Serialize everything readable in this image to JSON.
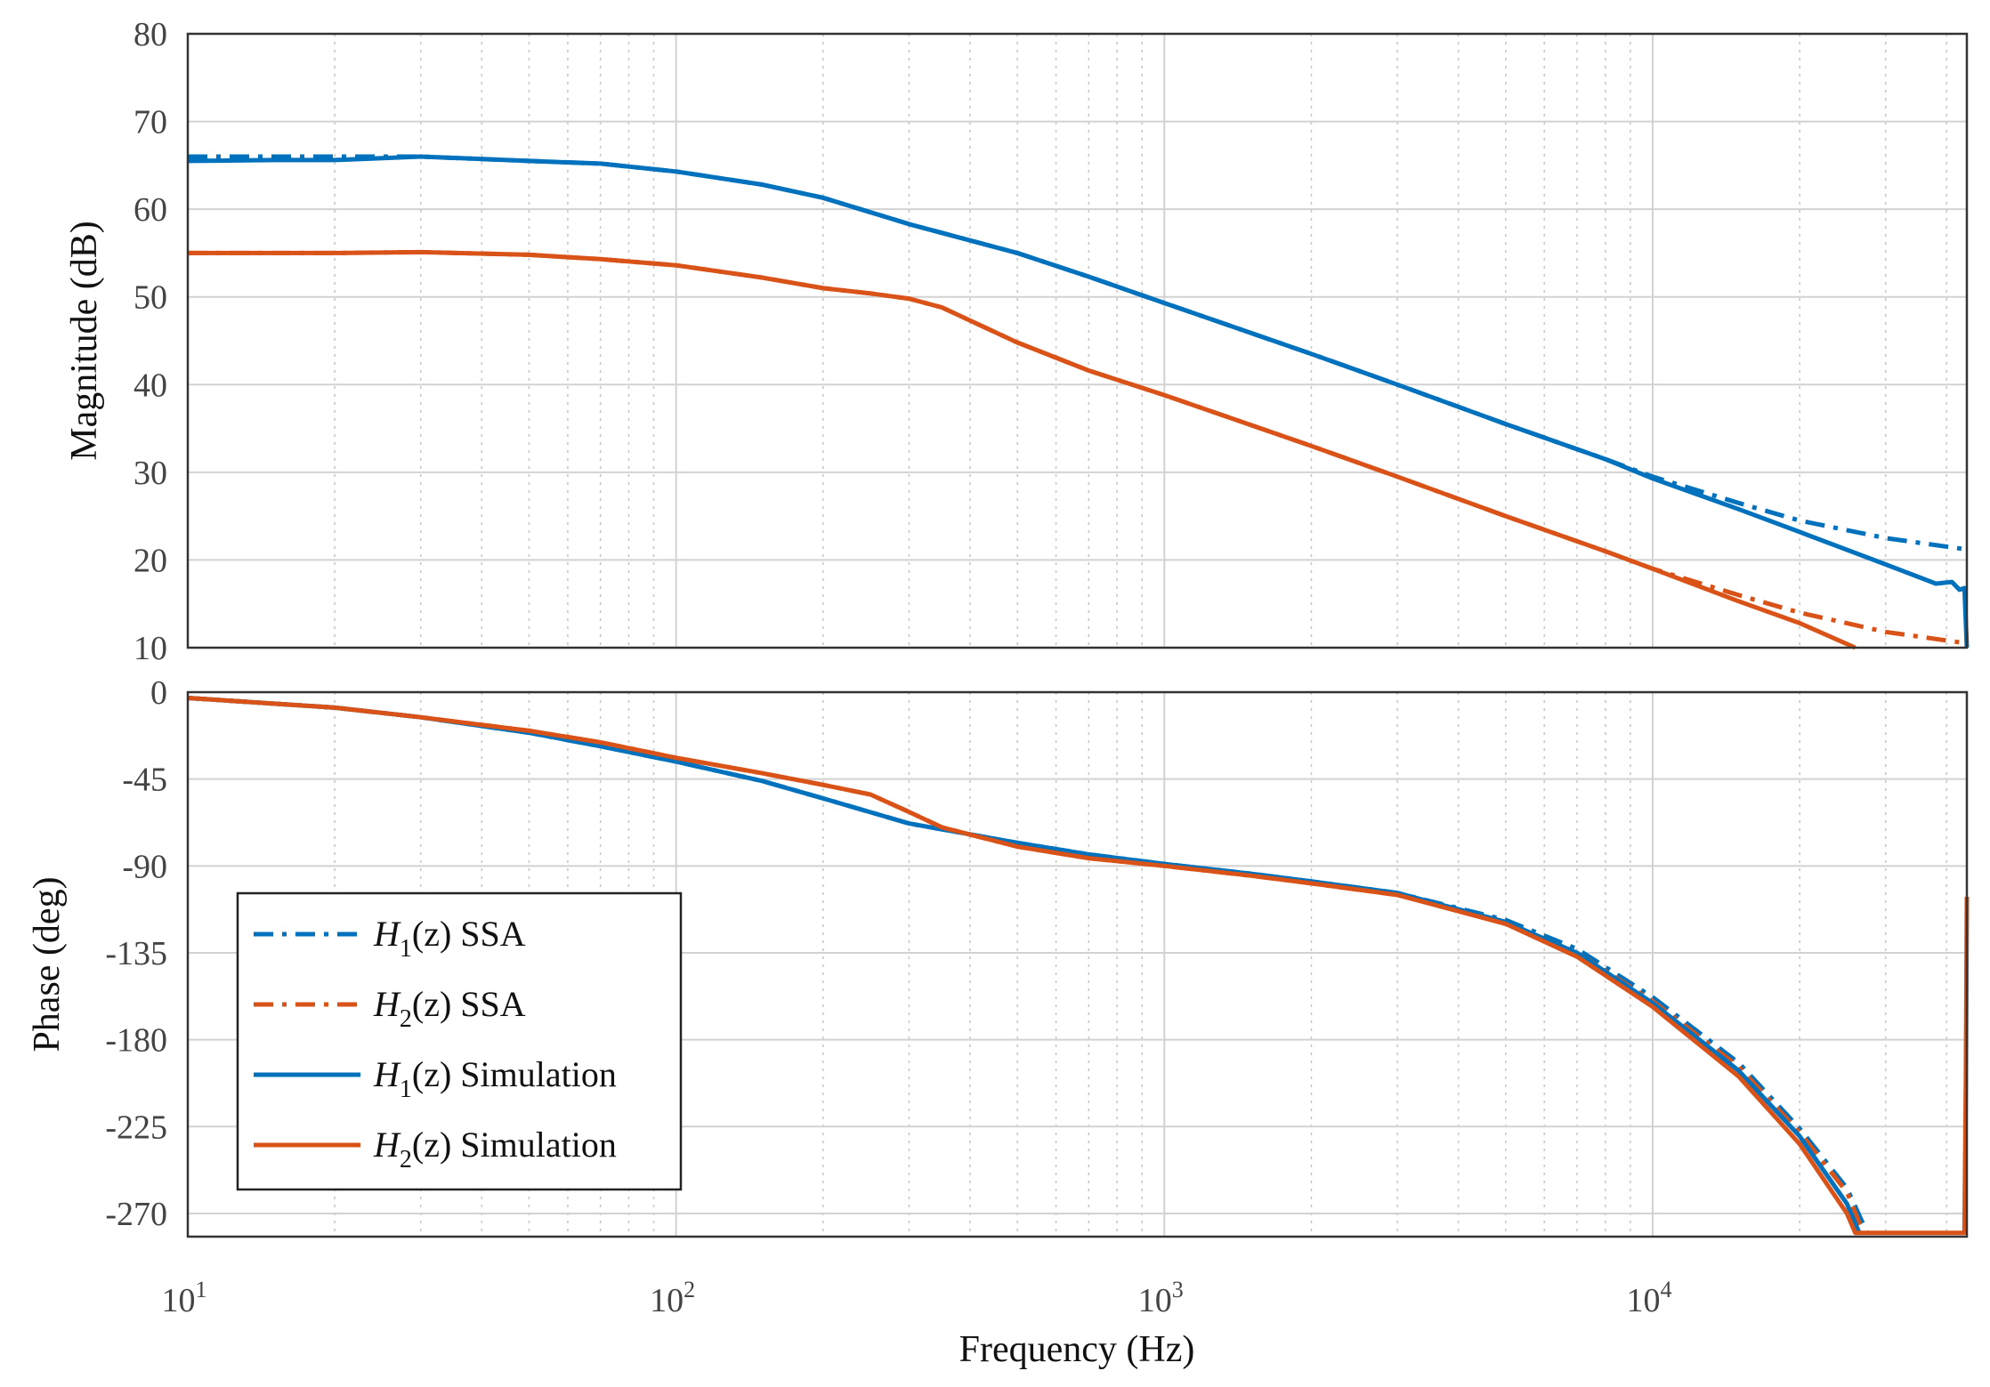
{
  "chart_data": {
    "type": "line",
    "xlabel": "Frequency  (Hz)",
    "xscale": "log",
    "xlim": [
      10,
      44000
    ],
    "x_tick_labels": [
      {
        "base": "10",
        "exp": "1",
        "value": 10
      },
      {
        "base": "10",
        "exp": "2",
        "value": 100
      },
      {
        "base": "10",
        "exp": "3",
        "value": 1000
      },
      {
        "base": "10",
        "exp": "4",
        "value": 10000
      }
    ],
    "colors": {
      "h1": "#0072bd",
      "h2": "#d95319"
    },
    "legend": {
      "placement": "lower-left of phase plot",
      "entries": [
        {
          "name_italic": "H",
          "sub": "1",
          "name_rest": "(z) SSA",
          "color": "#0072bd",
          "style": "dashdot"
        },
        {
          "name_italic": "H",
          "sub": "2",
          "name_rest": "(z) SSA",
          "color": "#d95319",
          "style": "dashdot"
        },
        {
          "name_italic": "H",
          "sub": "1",
          "name_rest": "(z) Simulation",
          "color": "#0072bd",
          "style": "solid"
        },
        {
          "name_italic": "H",
          "sub": "2",
          "name_rest": "(z) Simulation",
          "color": "#d95319",
          "style": "solid"
        }
      ]
    },
    "magnitude": {
      "ylabel": "Magnitude (dB)",
      "ylim": [
        10,
        80
      ],
      "yticks": [
        "10",
        "20",
        "30",
        "40",
        "50",
        "60",
        "70",
        "80"
      ],
      "grid": true,
      "series": [
        {
          "name": "H1(z) SSA",
          "color": "#0072bd",
          "style": "dashdot",
          "x": [
            10,
            15,
            20,
            30,
            50,
            70,
            100,
            150,
            200,
            300,
            500,
            700,
            1000,
            2000,
            3000,
            5000,
            8000,
            10000,
            15000,
            20000,
            30000,
            44000
          ],
          "y": [
            66,
            66,
            66,
            66,
            65.5,
            65.2,
            64.3,
            62.8,
            61.3,
            58.3,
            55.0,
            52.3,
            49.3,
            43.5,
            40.0,
            35.5,
            31.5,
            29.5,
            26.5,
            24.5,
            22.5,
            21.2
          ]
        },
        {
          "name": "H2(z) SSA",
          "color": "#d95319",
          "style": "dashdot",
          "x": [
            10,
            15,
            20,
            30,
            50,
            70,
            100,
            150,
            200,
            250,
            300,
            350,
            500,
            700,
            1000,
            2000,
            3000,
            5000,
            8000,
            10000,
            15000,
            20000,
            30000,
            44000
          ],
          "y": [
            55,
            55,
            55,
            55.1,
            54.8,
            54.3,
            53.6,
            52.2,
            51.0,
            50.4,
            49.8,
            48.8,
            44.8,
            41.6,
            38.8,
            33.0,
            29.5,
            25.0,
            21.0,
            19.0,
            16.0,
            14.0,
            11.8,
            10.5
          ]
        },
        {
          "name": "H1(z) Simulation",
          "color": "#0072bd",
          "style": "solid",
          "x": [
            10,
            15,
            20,
            30,
            50,
            70,
            100,
            150,
            200,
            300,
            500,
            700,
            1000,
            2000,
            3000,
            5000,
            8000,
            10000,
            15000,
            20000,
            30000,
            38000,
            41000,
            42500,
            43500,
            44000
          ],
          "y": [
            65.5,
            65.6,
            65.6,
            66,
            65.5,
            65.2,
            64.3,
            62.8,
            61.3,
            58.3,
            55.0,
            52.3,
            49.3,
            43.5,
            40.0,
            35.5,
            31.5,
            29.3,
            25.8,
            23.2,
            19.5,
            17.3,
            17.5,
            16.6,
            16.8,
            10
          ]
        },
        {
          "name": "H2(z) Simulation",
          "color": "#d95319",
          "style": "solid",
          "x": [
            10,
            15,
            20,
            30,
            50,
            70,
            100,
            150,
            200,
            250,
            300,
            350,
            500,
            700,
            1000,
            2000,
            3000,
            5000,
            8000,
            10000,
            15000,
            20000,
            26000
          ],
          "y": [
            55,
            55,
            55,
            55.1,
            54.8,
            54.3,
            53.6,
            52.2,
            51.0,
            50.4,
            49.8,
            48.8,
            44.8,
            41.6,
            38.8,
            33.0,
            29.5,
            25.0,
            21.0,
            19.0,
            15.3,
            12.8,
            10
          ]
        }
      ]
    },
    "phase": {
      "ylabel": "Phase (deg)",
      "ylim": [
        -282,
        0
      ],
      "yticks": [
        "0",
        "-45",
        "-90",
        "-135",
        "-180",
        "-225",
        "-270"
      ],
      "ytick_values": [
        0,
        -45,
        -90,
        -135,
        -180,
        -225,
        -270
      ],
      "grid": true,
      "series": [
        {
          "name": "H1(z) SSA",
          "color": "#0072bd",
          "style": "dashdot",
          "x": [
            10,
            20,
            30,
            50,
            70,
            100,
            150,
            200,
            300,
            500,
            700,
            1000,
            1500,
            2000,
            3000,
            5000,
            7000,
            10000,
            15000,
            20000,
            25000,
            27500
          ],
          "y": [
            -3,
            -8,
            -13,
            -21,
            -28,
            -36,
            -46,
            -55,
            -68,
            -78,
            -84,
            -89,
            -94,
            -98,
            -104,
            -118,
            -133,
            -158,
            -192,
            -226,
            -257,
            -280
          ]
        },
        {
          "name": "H2(z) SSA",
          "color": "#d95319",
          "style": "dashdot",
          "x": [
            10,
            20,
            30,
            50,
            70,
            100,
            150,
            200,
            250,
            300,
            350,
            500,
            700,
            1000,
            1500,
            2000,
            3000,
            5000,
            7000,
            10000,
            15000,
            20000,
            25000,
            27000
          ],
          "y": [
            -3,
            -8,
            -13,
            -20,
            -26,
            -34,
            -42,
            -48,
            -53,
            -62,
            -70,
            -80,
            -86,
            -90,
            -95,
            -99,
            -105,
            -119,
            -135,
            -160,
            -194,
            -228,
            -259,
            -280
          ]
        },
        {
          "name": "H1(z) Simulation",
          "color": "#0072bd",
          "style": "solid",
          "x": [
            10,
            20,
            30,
            50,
            70,
            100,
            150,
            200,
            300,
            500,
            700,
            1000,
            1500,
            2000,
            3000,
            5000,
            7000,
            10000,
            15000,
            20000,
            25000,
            26500
          ],
          "y": [
            -3,
            -8,
            -13,
            -21,
            -28,
            -36,
            -46,
            -55,
            -68,
            -78,
            -84,
            -89,
            -94,
            -98,
            -104,
            -119,
            -135,
            -161,
            -196,
            -230,
            -265,
            -280
          ]
        },
        {
          "name": "H2(z) Simulation",
          "color": "#d95319",
          "style": "solid",
          "x": [
            10,
            20,
            30,
            50,
            70,
            100,
            150,
            200,
            250,
            300,
            350,
            500,
            700,
            1000,
            1500,
            2000,
            3000,
            5000,
            7000,
            10000,
            15000,
            20000,
            25000,
            26000,
            43500,
            43800,
            44000
          ],
          "y": [
            -3,
            -8,
            -13,
            -20,
            -26,
            -34,
            -42,
            -48,
            -53,
            -62,
            -70,
            -80,
            -86,
            -90,
            -95,
            -99,
            -105,
            -120,
            -137,
            -163,
            -199,
            -234,
            -270,
            -280,
            -280,
            -200,
            -106
          ]
        }
      ]
    }
  }
}
